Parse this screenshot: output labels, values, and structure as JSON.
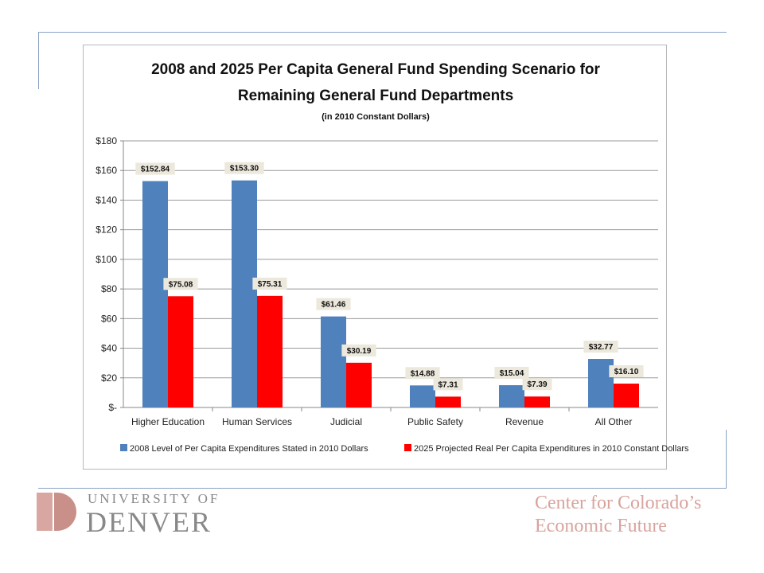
{
  "chart_data": {
    "type": "bar",
    "title_lines": [
      "2008 and 2025 Per Capita General Fund Spending Scenario for",
      "Remaining General Fund Departments"
    ],
    "subtitle": "(in 2010 Constant Dollars)",
    "categories": [
      "Higher Education",
      "Human Services",
      "Judicial",
      "Public Safety",
      "Revenue",
      "All Other"
    ],
    "series": [
      {
        "name": "2008 Level of Per Capita Expenditures Stated in 2010 Dollars",
        "color": "#4f81bd",
        "values": [
          152.84,
          153.3,
          61.46,
          14.88,
          15.04,
          32.77
        ],
        "labels": [
          "$152.84",
          "$153.30",
          "$61.46",
          "$14.88",
          "$15.04",
          "$32.77"
        ]
      },
      {
        "name": "2025 Projected Real Per Capita Expenditures in 2010 Constant Dollars",
        "color": "#ff0000",
        "values": [
          75.08,
          75.31,
          30.19,
          7.31,
          7.39,
          16.1
        ],
        "labels": [
          "$75.08",
          "$75.31",
          "$30.19",
          "$7.31",
          "$7.39",
          "$16.10"
        ]
      }
    ],
    "ylim": [
      0,
      180
    ],
    "yticks": [
      0,
      20,
      40,
      60,
      80,
      100,
      120,
      140,
      160,
      180
    ],
    "ytick_labels": [
      "$-",
      "$20",
      "$40",
      "$60",
      "$80",
      "$100",
      "$120",
      "$140",
      "$160",
      "$180"
    ],
    "grid": true,
    "legend_position": "bottom"
  },
  "footer": {
    "university_top": "UNIVERSITY OF",
    "university_bottom": "DENVER",
    "center_line1": "Center for Colorado’s",
    "center_line2": "Economic Future",
    "brand_color": "#d9a39d"
  }
}
